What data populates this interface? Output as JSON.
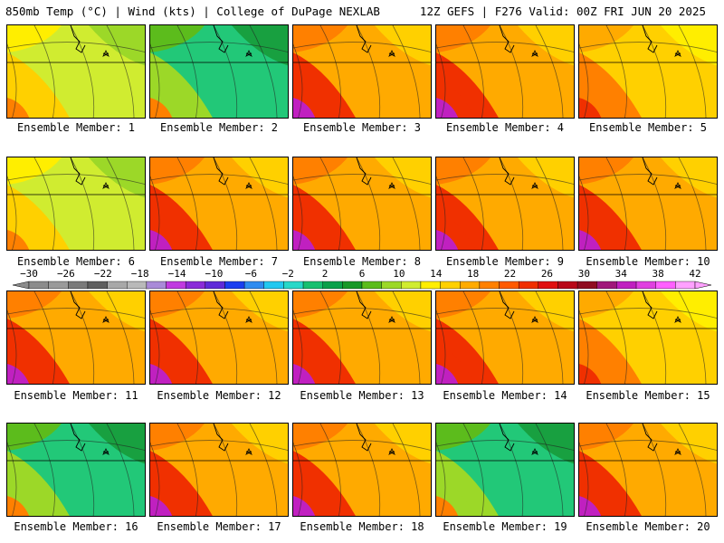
{
  "header": {
    "left": "850mb Temp (°C) | Wind (kts) | College of DuPage NEXLAB",
    "right": "12Z GEFS | F276 Valid: 00Z FRI JUN 20 2025"
  },
  "colorbar": {
    "labels": [
      "-30",
      "-26",
      "-22",
      "-18",
      "-14",
      "-10",
      "-6",
      "-2",
      "2",
      "6",
      "10",
      "14",
      "18",
      "22",
      "26",
      "30",
      "34",
      "38",
      "42"
    ],
    "colors": [
      "#8c8c8c",
      "#9a9a9a",
      "#7a7a7a",
      "#5e5e5e",
      "#a8a8a8",
      "#b9b9b9",
      "#a98ad8",
      "#c03ae0",
      "#8a2bd8",
      "#5e2ad8",
      "#1a3ef0",
      "#2f8cf0",
      "#22c8f0",
      "#28d8c8",
      "#18c070",
      "#0aa04a",
      "#189828",
      "#5cbc1c",
      "#9cd828",
      "#d0ec30",
      "#ffee00",
      "#ffd000",
      "#ffaa00",
      "#ff8000",
      "#ff5a00",
      "#f03000",
      "#e01010",
      "#b80818",
      "#900c20",
      "#a0187a",
      "#c020c0",
      "#e040e0",
      "#ff60ff",
      "#ffa0ff"
    ]
  },
  "panels": [
    {
      "label": "Ensemble Member: 1",
      "warm": "low"
    },
    {
      "label": "Ensemble Member: 2",
      "warm": "cool"
    },
    {
      "label": "Ensemble Member: 3",
      "warm": "hot"
    },
    {
      "label": "Ensemble Member: 4",
      "warm": "hot"
    },
    {
      "label": "Ensemble Member: 5",
      "warm": "mid"
    },
    {
      "label": "Ensemble Member: 6",
      "warm": "low"
    },
    {
      "label": "Ensemble Member: 7",
      "warm": "hot"
    },
    {
      "label": "Ensemble Member: 8",
      "warm": "hot"
    },
    {
      "label": "Ensemble Member: 9",
      "warm": "hot"
    },
    {
      "label": "Ensemble Member: 10",
      "warm": "hot"
    },
    {
      "label": "Ensemble Member: 11",
      "warm": "hot"
    },
    {
      "label": "Ensemble Member: 12",
      "warm": "hot"
    },
    {
      "label": "Ensemble Member: 13",
      "warm": "hot"
    },
    {
      "label": "Ensemble Member: 14",
      "warm": "hot"
    },
    {
      "label": "Ensemble Member: 15",
      "warm": "mid"
    },
    {
      "label": "Ensemble Member: 16",
      "warm": "cool"
    },
    {
      "label": "Ensemble Member: 17",
      "warm": "hot"
    },
    {
      "label": "Ensemble Member: 18",
      "warm": "hot"
    },
    {
      "label": "Ensemble Member: 19",
      "warm": "cool"
    },
    {
      "label": "Ensemble Member: 20",
      "warm": "hot"
    }
  ]
}
